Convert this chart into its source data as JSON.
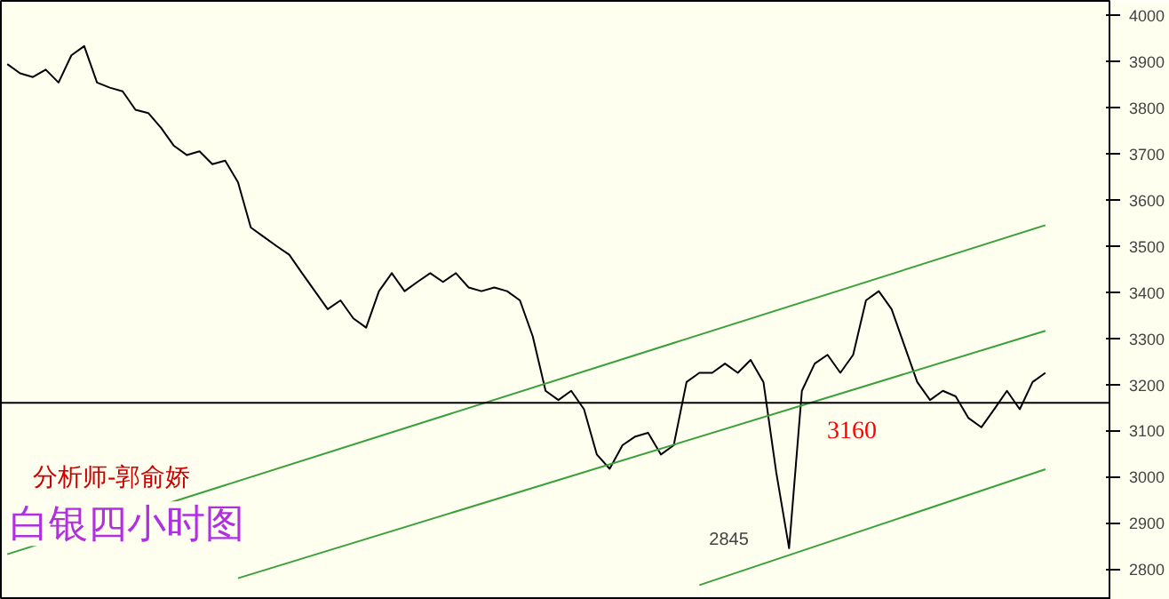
{
  "chart_data": {
    "type": "line",
    "tick_labels": "y",
    "categories": [
      null,
      null,
      null,
      null,
      null,
      null,
      null,
      null,
      null,
      null,
      null,
      null,
      null,
      null,
      null,
      null,
      null,
      null,
      null,
      null,
      null,
      null,
      null,
      null,
      null,
      null,
      null,
      null,
      null,
      null,
      null,
      null,
      null,
      null,
      null,
      null,
      null,
      null,
      null,
      null,
      null,
      null,
      null,
      null,
      null,
      null,
      null,
      null,
      null,
      null,
      null,
      null,
      null,
      null,
      null,
      null,
      null,
      null,
      null,
      null,
      null,
      null,
      null,
      null,
      null,
      null,
      null,
      null,
      null,
      null,
      null,
      null,
      null,
      null,
      null,
      null,
      null,
      null,
      null,
      null,
      null,
      null
    ],
    "ylim": [
      2733,
      4031
    ],
    "yticks": [
      2800,
      2900,
      3000,
      3100,
      3200,
      3300,
      3400,
      3500,
      3600,
      3700,
      3800,
      3900,
      4000
    ],
    "series": [
      {
        "color": "#000000",
        "values": [
          3894,
          3874,
          3866,
          3882,
          3854,
          3913,
          3933,
          3854,
          3843,
          3835,
          3795,
          3788,
          3756,
          3717,
          3697,
          3705,
          3677,
          3685,
          3638,
          3540,
          3520,
          3500,
          3481,
          3441,
          3402,
          3363,
          3382,
          3343,
          3323,
          3402,
          3441,
          3402,
          3422,
          3441,
          3422,
          3441,
          3410,
          3402,
          3410,
          3402,
          3382,
          3304,
          3186,
          3166,
          3186,
          3146,
          3048,
          3017,
          3068,
          3087,
          3095,
          3048,
          3068,
          3205,
          3225,
          3225,
          3245,
          3225,
          3253,
          3205,
          3009,
          2845,
          3186,
          3245,
          3264,
          3225,
          3264,
          3382,
          3402,
          3363,
          3284,
          3205,
          3166,
          3186,
          3174,
          3127,
          3107,
          3146,
          3186,
          3146,
          3205,
          3225
        ]
      },
      {
        "color": "#3aa03a",
        "values": [
          2832,
          null,
          null,
          null,
          null,
          null,
          null,
          null,
          null,
          null,
          null,
          null,
          null,
          null,
          null,
          null,
          null,
          null,
          null,
          null,
          null,
          null,
          null,
          null,
          null,
          null,
          null,
          null,
          null,
          null,
          null,
          null,
          null,
          null,
          null,
          null,
          null,
          null,
          null,
          null,
          null,
          null,
          null,
          null,
          null,
          null,
          null,
          null,
          null,
          null,
          null,
          null,
          null,
          null,
          null,
          null,
          null,
          null,
          null,
          null,
          null,
          null,
          null,
          null,
          null,
          null,
          null,
          null,
          null,
          null,
          null,
          null,
          null,
          null,
          null,
          null,
          null,
          null,
          null,
          null,
          null,
          3545
        ]
      },
      {
        "color": "#3aa03a",
        "values": [
          null,
          null,
          null,
          null,
          null,
          null,
          null,
          null,
          null,
          null,
          null,
          null,
          null,
          null,
          null,
          null,
          null,
          null,
          2780,
          null,
          null,
          null,
          null,
          null,
          null,
          null,
          null,
          null,
          null,
          null,
          null,
          null,
          null,
          null,
          null,
          null,
          null,
          null,
          null,
          null,
          null,
          null,
          null,
          null,
          null,
          null,
          null,
          null,
          null,
          null,
          null,
          null,
          null,
          null,
          null,
          null,
          null,
          null,
          null,
          null,
          null,
          null,
          null,
          null,
          null,
          null,
          null,
          null,
          null,
          null,
          null,
          null,
          null,
          null,
          null,
          null,
          null,
          null,
          null,
          null,
          null,
          3316
        ]
      },
      {
        "color": "#3aa03a",
        "values": [
          null,
          null,
          null,
          null,
          null,
          null,
          null,
          null,
          null,
          null,
          null,
          null,
          null,
          null,
          null,
          null,
          null,
          null,
          null,
          null,
          null,
          null,
          null,
          null,
          null,
          null,
          null,
          null,
          null,
          null,
          null,
          null,
          null,
          null,
          null,
          null,
          null,
          null,
          null,
          null,
          null,
          null,
          null,
          null,
          null,
          null,
          null,
          null,
          null,
          null,
          null,
          null,
          null,
          null,
          2765,
          null,
          null,
          null,
          null,
          null,
          null,
          null,
          null,
          null,
          null,
          null,
          null,
          null,
          null,
          null,
          null,
          null,
          null,
          null,
          null,
          null,
          null,
          null,
          null,
          null,
          null,
          3016
        ]
      }
    ],
    "ref_lines": [
      {
        "axis": "y",
        "value": 3160,
        "label": "3160",
        "color": "#000000"
      }
    ],
    "annotations": [
      "2845",
      "分析师-郭俞娇",
      "白银四小时图"
    ]
  }
}
